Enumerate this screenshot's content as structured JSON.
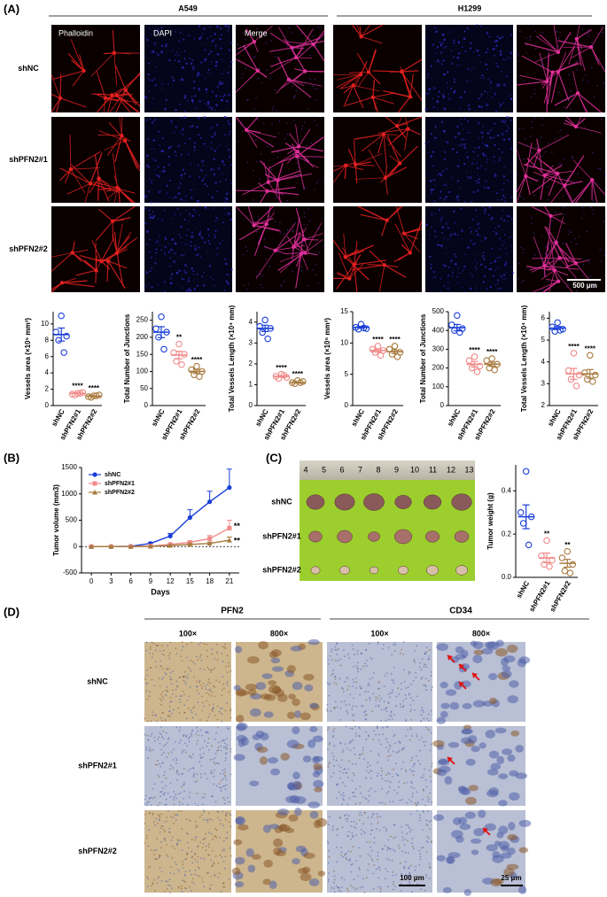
{
  "panel_a": {
    "label": "(A)",
    "cell_lines": [
      "A549",
      "H1299"
    ],
    "stains": [
      "Phalloidin",
      "DAPI",
      "Merge"
    ],
    "rows": [
      "shNC",
      "shPFN2#1",
      "shPFN2#2"
    ],
    "scale_bar": "500 μm"
  },
  "panel_b": {
    "label": "(B)"
  },
  "panel_c": {
    "label": "(C)",
    "rows": [
      "shNC",
      "shPFN2#1",
      "shPFN2#2"
    ],
    "ruler": [
      "4",
      "5",
      "6",
      "7",
      "8",
      "9",
      "10",
      "11",
      "12",
      "13"
    ]
  },
  "panel_d": {
    "label": "(D)",
    "markers": [
      "PFN2",
      "CD34"
    ],
    "magnifications": [
      "100×",
      "800×",
      "100×",
      "800×"
    ],
    "rows": [
      "shNC",
      "shPFN2#1",
      "shPFN2#2"
    ],
    "scale_bars": [
      "100 μm",
      "25 μm"
    ]
  },
  "chart_data": [
    {
      "type": "dot",
      "ylabel": "Vessels area (×10⁵ mm³)",
      "categories": [
        "shNC",
        "shPFN2#1",
        "shPFN2#2"
      ],
      "colors": [
        "#1a3fd8",
        "#f08a8a",
        "#a87a3e"
      ],
      "points": [
        [
          11,
          9,
          8.5,
          8,
          6.5
        ],
        [
          1.5,
          1.4,
          1.6,
          1.3,
          1.5
        ],
        [
          1.2,
          1.1,
          1.3,
          1.0,
          1.2
        ]
      ],
      "mean": [
        8.7,
        1.5,
        1.15
      ],
      "sem": [
        0.8,
        0.05,
        0.05
      ],
      "significance": [
        null,
        "****",
        "****"
      ],
      "ylim": [
        0,
        11.5
      ],
      "yticks": [
        0,
        2,
        4,
        6,
        8,
        10
      ]
    },
    {
      "type": "dot",
      "ylabel": "Total Number of Junctions",
      "categories": [
        "shNC",
        "shPFN2#1",
        "shPFN2#2"
      ],
      "colors": [
        "#1a3fd8",
        "#f08a8a",
        "#a87a3e"
      ],
      "points": [
        [
          260,
          225,
          215,
          200,
          165
        ],
        [
          180,
          155,
          150,
          130,
          120
        ],
        [
          115,
          105,
          100,
          90,
          85
        ]
      ],
      "mean": [
        215,
        148,
        100
      ],
      "sem": [
        16,
        11,
        6
      ],
      "significance": [
        null,
        "**",
        "****"
      ],
      "ylim": [
        0,
        275
      ],
      "yticks": [
        0,
        50,
        100,
        150,
        200,
        250
      ]
    },
    {
      "type": "dot",
      "ylabel": "Total Vessels Length (×10⁴ mm)",
      "categories": [
        "shNC",
        "shPFN2#1",
        "shPFN2#2"
      ],
      "colors": [
        "#1a3fd8",
        "#f08a8a",
        "#a87a3e"
      ],
      "points": [
        [
          4.1,
          3.8,
          3.7,
          3.5,
          3.2
        ],
        [
          1.5,
          1.4,
          1.35,
          1.3,
          1.45
        ],
        [
          1.2,
          1.1,
          1.15,
          1.05,
          1.1
        ]
      ],
      "mean": [
        3.7,
        1.4,
        1.1
      ],
      "sem": [
        0.15,
        0.04,
        0.03
      ],
      "significance": [
        null,
        "****",
        "****"
      ],
      "ylim": [
        0,
        4.5
      ],
      "yticks": [
        0,
        1,
        2,
        3,
        4
      ]
    },
    {
      "type": "dot",
      "ylabel": "Vessels area (×10⁵ mm³)",
      "categories": [
        "shNC",
        "shPFN2#1",
        "shPFN2#2"
      ],
      "colors": [
        "#1a3fd8",
        "#f08a8a",
        "#a87a3e"
      ],
      "points": [
        [
          13,
          12.5,
          12.3,
          12.2,
          12.4
        ],
        [
          9.5,
          9,
          8.8,
          8.5,
          8
        ],
        [
          9.5,
          9,
          8.5,
          8.2,
          7.8
        ]
      ],
      "mean": [
        12.5,
        8.8,
        8.6
      ],
      "sem": [
        0.15,
        0.25,
        0.3
      ],
      "significance": [
        null,
        "****",
        "****"
      ],
      "ylim": [
        0,
        15
      ],
      "yticks": [
        0,
        5,
        10,
        15
      ]
    },
    {
      "type": "dot",
      "ylabel": "Total Number of Junctions",
      "categories": [
        "shNC",
        "shPFN2#1",
        "shPFN2#2"
      ],
      "colors": [
        "#1a3fd8",
        "#f08a8a",
        "#a87a3e"
      ],
      "points": [
        [
          480,
          430,
          410,
          400,
          390
        ],
        [
          260,
          240,
          210,
          200,
          180
        ],
        [
          250,
          240,
          220,
          200,
          190
        ]
      ],
      "mean": [
        415,
        220,
        220
      ],
      "sem": [
        17,
        15,
        11
      ],
      "significance": [
        null,
        "****",
        "****"
      ],
      "ylim": [
        0,
        500
      ],
      "yticks": [
        0,
        100,
        200,
        300,
        400,
        500
      ]
    },
    {
      "type": "dot",
      "ylabel": "Total Vessels Length (×10⁴ mm)",
      "categories": [
        "shNC",
        "shPFN2#1",
        "shPFN2#2"
      ],
      "colors": [
        "#1a3fd8",
        "#f08a8a",
        "#a87a3e"
      ],
      "points": [
        [
          5.8,
          5.6,
          5.5,
          5.4,
          5.45
        ],
        [
          4.4,
          3.6,
          3.4,
          3.2,
          2.9
        ],
        [
          4.3,
          3.5,
          3.4,
          3.2,
          3.1
        ]
      ],
      "mean": [
        5.55,
        3.45,
        3.45
      ],
      "sem": [
        0.07,
        0.25,
        0.2
      ],
      "significance": [
        null,
        "****",
        "****"
      ],
      "ylim": [
        2,
        6.3
      ],
      "yticks": [
        2,
        3,
        4,
        5,
        6
      ]
    },
    {
      "type": "line",
      "ylabel": "Tumor volume (mm3)",
      "xlabel": "Days",
      "x": [
        0,
        3,
        6,
        9,
        12,
        15,
        18,
        21
      ],
      "xlim": [
        -1.5,
        22.5
      ],
      "xticks": [
        0,
        3,
        6,
        9,
        12,
        15,
        18,
        21
      ],
      "ylim": [
        -500,
        1500
      ],
      "yticks": [
        -500,
        0,
        500,
        1000,
        1500
      ],
      "series": [
        {
          "name": "shNC",
          "color": "#1a3fd8",
          "marker": "circle",
          "values": [
            0,
            0,
            5,
            60,
            200,
            550,
            850,
            1120
          ],
          "errors": [
            0,
            0,
            5,
            20,
            50,
            150,
            200,
            350
          ],
          "significance": null
        },
        {
          "name": "shPFN2#1",
          "color": "#f08a8a",
          "marker": "square",
          "values": [
            0,
            0,
            0,
            10,
            40,
            80,
            150,
            350
          ],
          "errors": [
            0,
            0,
            0,
            5,
            15,
            30,
            60,
            150
          ],
          "significance": "**"
        },
        {
          "name": "shPFN2#2",
          "color": "#a87a3e",
          "marker": "triangle",
          "values": [
            0,
            0,
            0,
            5,
            20,
            40,
            60,
            120
          ],
          "errors": [
            0,
            0,
            0,
            3,
            8,
            15,
            25,
            60
          ],
          "significance": "**"
        }
      ]
    },
    {
      "type": "dot",
      "ylabel": "Tumor weight (g)",
      "categories": [
        "shNC",
        "shPFN2#1",
        "shPFN2#2"
      ],
      "colors": [
        "#1a3fd8",
        "#f08a8a",
        "#a87a3e"
      ],
      "points": [
        [
          0.49,
          0.3,
          0.28,
          0.25,
          0.15
        ],
        [
          0.17,
          0.1,
          0.08,
          0.06,
          0.05
        ],
        [
          0.12,
          0.09,
          0.06,
          0.03,
          0.02
        ]
      ],
      "mean": [
        0.28,
        0.09,
        0.065
      ],
      "sem": [
        0.055,
        0.022,
        0.018
      ],
      "significance": [
        null,
        "**",
        "**"
      ],
      "ylim": [
        0,
        0.52
      ],
      "yticks": [
        {
          "value": 0,
          "label": "0.0"
        },
        {
          "value": 0.2,
          "label": "0.2"
        },
        {
          "value": 0.4,
          "label": "0.4"
        }
      ]
    }
  ]
}
